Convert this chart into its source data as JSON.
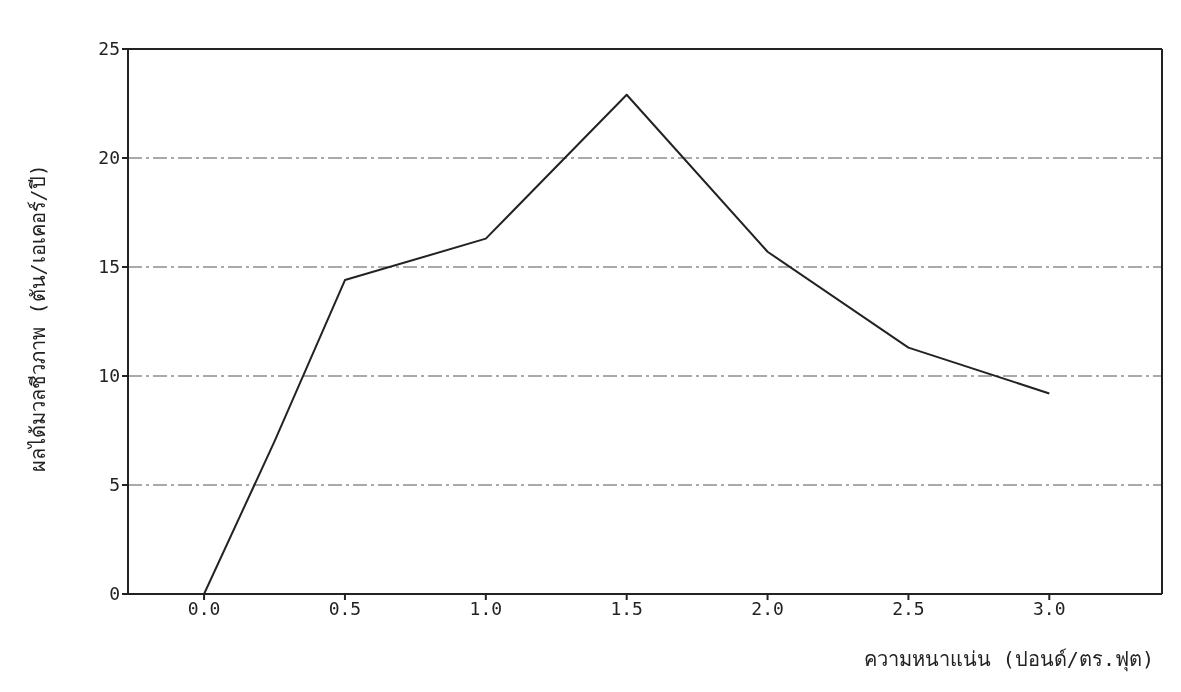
{
  "chart_data": {
    "type": "line",
    "xlabel": "ความหนาแน่น (ปอนด์/ตร.ฟุต)",
    "ylabel": "ผลได้มวลชีวภาพ (ตัน/เอเคอร์/ปี)",
    "x": [
      0.0,
      0.25,
      0.5,
      1.0,
      1.5,
      2.0,
      2.5,
      3.0
    ],
    "series": [
      {
        "color": "#222222",
        "values": [
          0,
          7,
          14.4,
          16.3,
          22.9,
          15.7,
          11.3,
          9.2
        ]
      }
    ],
    "xlim": [
      -0.27,
      3.4
    ],
    "xticks": [
      {
        "value": 0,
        "label": "0.0"
      },
      {
        "value": 0.5,
        "label": "0.5"
      },
      {
        "value": 1,
        "label": "1.0"
      },
      {
        "value": 1.5,
        "label": "1.5"
      },
      {
        "value": 2,
        "label": "2.0"
      },
      {
        "value": 2.5,
        "label": "2.5"
      },
      {
        "value": 3,
        "label": "3.0"
      }
    ],
    "ylim": [
      0,
      25
    ],
    "yticks": [
      0,
      5,
      10,
      15,
      20,
      25
    ],
    "grid": "y",
    "marker": "none",
    "line_style": "solid"
  }
}
